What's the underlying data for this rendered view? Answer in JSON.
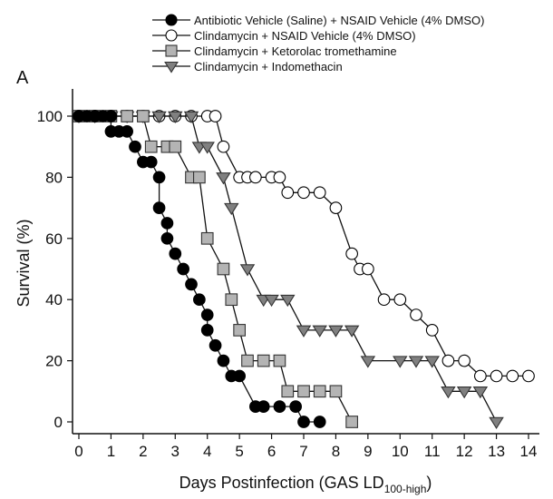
{
  "panel_label": "A",
  "chart_data": {
    "type": "line",
    "xlabel_main": "Days Postinfection (GAS LD",
    "xlabel_sub": "100-high",
    "xlabel_close": ")",
    "ylabel": "Survival (%)",
    "xlim": [
      0,
      14
    ],
    "ylim": [
      0,
      100
    ],
    "x_ticks": [
      "0",
      "1",
      "2",
      "3",
      "4",
      "5",
      "6",
      "7",
      "8",
      "9",
      "10",
      "11",
      "12",
      "13",
      "14"
    ],
    "y_ticks": [
      "0",
      "20",
      "40",
      "60",
      "80",
      "100"
    ],
    "grid": false,
    "legend_position": "top",
    "series": [
      {
        "name": "Antibiotic Vehicle (Saline) + NSAID Vehicle (4% DMSO)",
        "marker": "circle",
        "fill": "#000000",
        "stroke": "#000000",
        "points": [
          [
            0,
            100
          ],
          [
            0.25,
            100
          ],
          [
            0.5,
            100
          ],
          [
            0.75,
            100
          ],
          [
            1,
            100
          ],
          [
            1,
            95
          ],
          [
            1.25,
            95
          ],
          [
            1.5,
            95
          ],
          [
            1.75,
            90
          ],
          [
            2,
            85
          ],
          [
            2.25,
            85
          ],
          [
            2.5,
            80
          ],
          [
            2.5,
            70
          ],
          [
            2.75,
            65
          ],
          [
            2.75,
            60
          ],
          [
            3,
            55
          ],
          [
            3.25,
            50
          ],
          [
            3.5,
            45
          ],
          [
            3.75,
            40
          ],
          [
            4,
            35
          ],
          [
            4,
            30
          ],
          [
            4.25,
            25
          ],
          [
            4.5,
            20
          ],
          [
            4.75,
            15
          ],
          [
            5,
            15
          ],
          [
            5.5,
            5
          ],
          [
            5.75,
            5
          ],
          [
            6.25,
            5
          ],
          [
            6.75,
            5
          ],
          [
            7,
            0
          ],
          [
            7.5,
            0
          ]
        ]
      },
      {
        "name": "Clindamycin + NSAID Vehicle (4% DMSO)",
        "marker": "circle",
        "fill": "#ffffff",
        "stroke": "#000000",
        "points": [
          [
            0,
            100
          ],
          [
            0.5,
            100
          ],
          [
            1,
            100
          ],
          [
            1.5,
            100
          ],
          [
            2,
            100
          ],
          [
            2.5,
            100
          ],
          [
            3,
            100
          ],
          [
            3.5,
            100
          ],
          [
            4,
            100
          ],
          [
            4.25,
            100
          ],
          [
            4.5,
            90
          ],
          [
            5,
            80
          ],
          [
            5.25,
            80
          ],
          [
            5.5,
            80
          ],
          [
            6,
            80
          ],
          [
            6.25,
            80
          ],
          [
            6.5,
            75
          ],
          [
            7,
            75
          ],
          [
            7.5,
            75
          ],
          [
            8,
            70
          ],
          [
            8.5,
            55
          ],
          [
            8.75,
            50
          ],
          [
            9,
            50
          ],
          [
            9.5,
            40
          ],
          [
            10,
            40
          ],
          [
            10.5,
            35
          ],
          [
            11,
            30
          ],
          [
            11.5,
            20
          ],
          [
            12,
            20
          ],
          [
            12.5,
            15
          ],
          [
            13,
            15
          ],
          [
            13.5,
            15
          ],
          [
            14,
            15
          ]
        ]
      },
      {
        "name": "Clindamycin + Ketorolac tromethamine",
        "marker": "square",
        "fill": "#b4b4b4",
        "stroke": "#333333",
        "points": [
          [
            0,
            100
          ],
          [
            0.5,
            100
          ],
          [
            1,
            100
          ],
          [
            1.5,
            100
          ],
          [
            2,
            100
          ],
          [
            2.25,
            90
          ],
          [
            2.75,
            90
          ],
          [
            3,
            90
          ],
          [
            3.5,
            80
          ],
          [
            3.75,
            80
          ],
          [
            4,
            60
          ],
          [
            4.5,
            50
          ],
          [
            4.75,
            40
          ],
          [
            5,
            30
          ],
          [
            5.25,
            20
          ],
          [
            5.75,
            20
          ],
          [
            6.25,
            20
          ],
          [
            6.5,
            10
          ],
          [
            7,
            10
          ],
          [
            7.5,
            10
          ],
          [
            8,
            10
          ],
          [
            8.5,
            0
          ]
        ]
      },
      {
        "name": "Clindamycin + Indomethacin",
        "marker": "triangle",
        "fill": "#808080",
        "stroke": "#333333",
        "points": [
          [
            0,
            100
          ],
          [
            0.5,
            100
          ],
          [
            1,
            100
          ],
          [
            1.5,
            100
          ],
          [
            2,
            100
          ],
          [
            2.5,
            100
          ],
          [
            3,
            100
          ],
          [
            3.5,
            100
          ],
          [
            3.75,
            90
          ],
          [
            4,
            90
          ],
          [
            4.5,
            80
          ],
          [
            4.75,
            70
          ],
          [
            5.25,
            50
          ],
          [
            5.75,
            40
          ],
          [
            6,
            40
          ],
          [
            6.5,
            40
          ],
          [
            7,
            30
          ],
          [
            7.5,
            30
          ],
          [
            8,
            30
          ],
          [
            8.5,
            30
          ],
          [
            9,
            20
          ],
          [
            10,
            20
          ],
          [
            10.5,
            20
          ],
          [
            11,
            20
          ],
          [
            11.5,
            10
          ],
          [
            12,
            10
          ],
          [
            12.5,
            10
          ],
          [
            13,
            0
          ]
        ]
      }
    ]
  }
}
